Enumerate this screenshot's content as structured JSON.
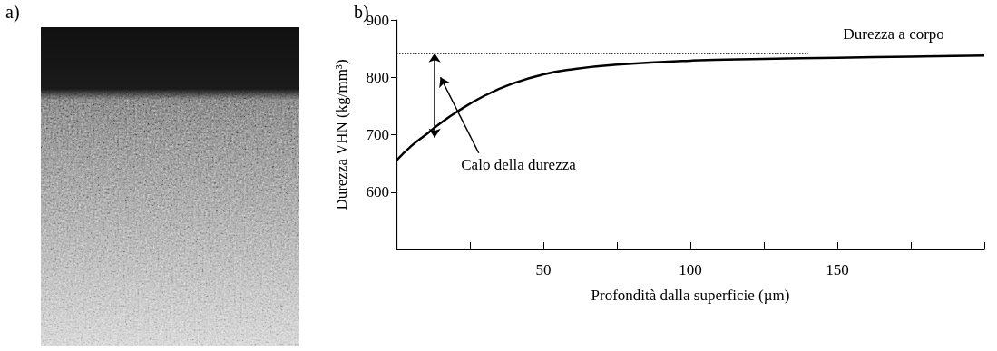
{
  "panel_labels": [
    "a)",
    "b)"
  ],
  "chart_data": {
    "type": "line",
    "x_label": "Profondità dalla superficie (µm)",
    "y_label": "Durezza VHN (kg/mm³)",
    "x": [
      0,
      5,
      10,
      15,
      20,
      30,
      40,
      50,
      60,
      75,
      100,
      125,
      150,
      175,
      200
    ],
    "values": [
      655,
      680,
      700,
      720,
      738,
      768,
      790,
      805,
      814,
      822,
      829,
      832,
      834,
      836,
      838
    ],
    "color": "#000000",
    "xlim": [
      0,
      200
    ],
    "ylim": [
      500,
      900
    ],
    "xticks": [
      50,
      100,
      150
    ],
    "yticks": [
      600,
      700,
      800,
      900
    ],
    "grid": false,
    "bulk_hardness": {
      "value": 842,
      "x_start": 0,
      "x_end": 140,
      "label": "Durezza a corpo",
      "label_x": 152,
      "label_y": 862
    },
    "hardness_drop": {
      "x": 13,
      "from": 842,
      "to": 695,
      "label": "Calo della durezza",
      "label_x": 22,
      "label_y": 648,
      "pointer_from": [
        28,
        668
      ],
      "pointer_to": [
        15,
        800
      ]
    }
  }
}
